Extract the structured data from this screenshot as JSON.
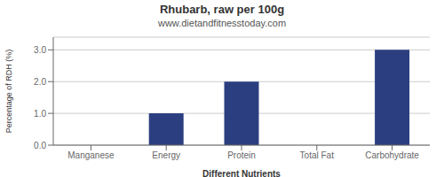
{
  "chart_data": {
    "type": "bar",
    "title": "Rhubarb, raw per 100g",
    "subtitle": "www.dietandfitnesstoday.com",
    "xlabel": "Different Nutrients",
    "ylabel": "Percentage of RDH (%)",
    "categories": [
      "Manganese",
      "Energy",
      "Protein",
      "Total Fat",
      "Carbohydrate"
    ],
    "values": [
      0.0,
      1.0,
      2.0,
      0.0,
      3.0
    ],
    "color": "#2b3f80",
    "ylim": [
      0,
      3.4
    ],
    "yticks": [
      {
        "value": 0.0,
        "label": "0.0"
      },
      {
        "value": 1.0,
        "label": "1.0"
      },
      {
        "value": 2.0,
        "label": "2.0"
      },
      {
        "value": 3.0,
        "label": "3.0"
      }
    ],
    "grid": true
  }
}
